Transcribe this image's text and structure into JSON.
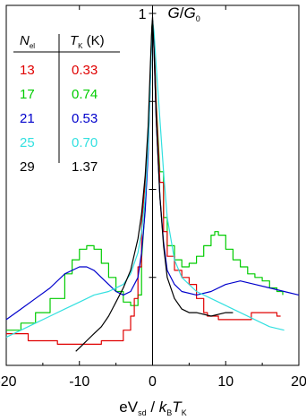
{
  "chart_data": {
    "type": "line",
    "x_axis": {
      "label_parts": [
        "eV",
        "sd",
        " / ",
        "k",
        "B",
        "T",
        "K"
      ],
      "range": [
        -20,
        20
      ],
      "ticks": [
        -20,
        -10,
        0,
        10,
        20
      ],
      "tick_labels": [
        "-20",
        "-10",
        "0",
        "10",
        "20"
      ]
    },
    "y_axis": {
      "label_parts": [
        "G",
        "/",
        "G",
        "0"
      ],
      "range": [
        0,
        1
      ],
      "tick_labels": [
        "1"
      ]
    },
    "table": {
      "header_n_parts": [
        "N",
        "el"
      ],
      "header_t_parts": [
        "T",
        "K",
        " (K)"
      ],
      "rows": [
        {
          "n": "13",
          "t": "0.33",
          "color": "#e00000"
        },
        {
          "n": "17",
          "t": "0.74",
          "color": "#00cc00"
        },
        {
          "n": "21",
          "t": "0.53",
          "color": "#0000cc"
        },
        {
          "n": "25",
          "t": "0.70",
          "color": "#33e0e0"
        },
        {
          "n": "29",
          "t": "1.37",
          "color": "#000000"
        }
      ]
    },
    "series": [
      {
        "color": "#00cc00",
        "step": true,
        "points": [
          [
            -20,
            0.1
          ],
          [
            -18,
            0.12
          ],
          [
            -16,
            0.15
          ],
          [
            -14,
            0.19
          ],
          [
            -12,
            0.26
          ],
          [
            -11,
            0.3
          ],
          [
            -10,
            0.33
          ],
          [
            -9,
            0.34
          ],
          [
            -8,
            0.33
          ],
          [
            -7,
            0.29
          ],
          [
            -6,
            0.25
          ],
          [
            -5,
            0.21
          ],
          [
            -4,
            0.18
          ],
          [
            -3,
            0.17
          ],
          [
            -2,
            0.2
          ],
          [
            -1.5,
            0.3
          ],
          [
            -1,
            0.45
          ],
          [
            -0.6,
            0.62
          ],
          [
            -0.3,
            0.82
          ],
          [
            -0.1,
            0.96
          ],
          [
            0,
            0.98
          ],
          [
            0.2,
            0.93
          ],
          [
            0.5,
            0.75
          ],
          [
            1,
            0.55
          ],
          [
            1.5,
            0.42
          ],
          [
            2,
            0.34
          ],
          [
            3,
            0.3
          ],
          [
            4,
            0.28
          ],
          [
            5,
            0.29
          ],
          [
            6,
            0.31
          ],
          [
            7,
            0.34
          ],
          [
            8,
            0.37
          ],
          [
            8.5,
            0.38
          ],
          [
            9,
            0.37
          ],
          [
            10,
            0.33
          ],
          [
            11,
            0.3
          ],
          [
            12,
            0.28
          ],
          [
            13,
            0.26
          ],
          [
            14,
            0.25
          ],
          [
            15,
            0.24
          ],
          [
            16,
            0.22
          ],
          [
            17,
            0.21
          ],
          [
            17.8,
            0.2
          ]
        ]
      },
      {
        "color": "#e00000",
        "step": true,
        "points": [
          [
            -20,
            0.09
          ],
          [
            -17,
            0.07
          ],
          [
            -13,
            0.06
          ],
          [
            -10,
            0.06
          ],
          [
            -8,
            0.06
          ],
          [
            -7,
            0.07
          ],
          [
            -5,
            0.07
          ],
          [
            -4,
            0.1
          ],
          [
            -3,
            0.14
          ],
          [
            -2.5,
            0.19
          ],
          [
            -2,
            0.28
          ],
          [
            -1.5,
            0.4
          ],
          [
            -1,
            0.52
          ],
          [
            -0.6,
            0.66
          ],
          [
            -0.3,
            0.82
          ],
          [
            -0.1,
            0.95
          ],
          [
            0,
            0.98
          ],
          [
            0.2,
            0.93
          ],
          [
            0.5,
            0.74
          ],
          [
            1,
            0.52
          ],
          [
            1.5,
            0.38
          ],
          [
            2,
            0.31
          ],
          [
            3,
            0.27
          ],
          [
            4,
            0.25
          ],
          [
            5,
            0.23
          ],
          [
            6,
            0.19
          ],
          [
            7,
            0.15
          ],
          [
            7.5,
            0.14
          ],
          [
            8,
            0.14
          ],
          [
            9,
            0.13
          ],
          [
            10,
            0.13
          ],
          [
            13,
            0.13
          ],
          [
            13.5,
            0.15
          ],
          [
            15,
            0.15
          ],
          [
            17,
            0.14
          ],
          [
            17.5,
            0.14
          ]
        ]
      },
      {
        "color": "#0000cc",
        "step": false,
        "points": [
          [
            -20,
            0.13
          ],
          [
            -18,
            0.16
          ],
          [
            -16,
            0.19
          ],
          [
            -14,
            0.22
          ],
          [
            -12,
            0.26
          ],
          [
            -10,
            0.28
          ],
          [
            -9,
            0.28
          ],
          [
            -8,
            0.27
          ],
          [
            -7,
            0.25
          ],
          [
            -6,
            0.23
          ],
          [
            -5,
            0.21
          ],
          [
            -4,
            0.2
          ],
          [
            -3,
            0.21
          ],
          [
            -2,
            0.25
          ],
          [
            -1.5,
            0.32
          ],
          [
            -1,
            0.44
          ],
          [
            -0.6,
            0.6
          ],
          [
            -0.3,
            0.8
          ],
          [
            -0.1,
            0.95
          ],
          [
            0,
            0.98
          ],
          [
            0.2,
            0.9
          ],
          [
            0.5,
            0.7
          ],
          [
            1,
            0.48
          ],
          [
            1.5,
            0.35
          ],
          [
            2,
            0.27
          ],
          [
            3,
            0.23
          ],
          [
            4,
            0.21
          ],
          [
            6,
            0.2
          ],
          [
            8,
            0.21
          ],
          [
            10,
            0.23
          ],
          [
            12,
            0.24
          ],
          [
            14,
            0.23
          ],
          [
            16,
            0.22
          ],
          [
            18,
            0.21
          ],
          [
            20,
            0.2
          ]
        ]
      },
      {
        "color": "#33e0e0",
        "step": false,
        "points": [
          [
            -20,
            0.08
          ],
          [
            -18,
            0.1
          ],
          [
            -16,
            0.12
          ],
          [
            -14,
            0.14
          ],
          [
            -12,
            0.16
          ],
          [
            -10,
            0.18
          ],
          [
            -8,
            0.2
          ],
          [
            -6,
            0.21
          ],
          [
            -4,
            0.23
          ],
          [
            -3,
            0.26
          ],
          [
            -2,
            0.32
          ],
          [
            -1.5,
            0.38
          ],
          [
            -1,
            0.48
          ],
          [
            -0.6,
            0.62
          ],
          [
            -0.3,
            0.8
          ],
          [
            -0.1,
            0.94
          ],
          [
            0,
            0.98
          ],
          [
            0.2,
            0.95
          ],
          [
            0.5,
            0.85
          ],
          [
            1,
            0.7
          ],
          [
            1.5,
            0.55
          ],
          [
            2,
            0.42
          ],
          [
            3,
            0.3
          ],
          [
            4,
            0.25
          ],
          [
            6,
            0.21
          ],
          [
            8,
            0.19
          ],
          [
            10,
            0.17
          ],
          [
            12,
            0.15
          ],
          [
            14,
            0.13
          ],
          [
            16,
            0.11
          ],
          [
            18,
            0.1
          ]
        ]
      },
      {
        "color": "#000000",
        "step": false,
        "points": [
          [
            -10.5,
            0.04
          ],
          [
            -10,
            0.05
          ],
          [
            -9,
            0.07
          ],
          [
            -8,
            0.09
          ],
          [
            -7,
            0.11
          ],
          [
            -6,
            0.14
          ],
          [
            -5,
            0.18
          ],
          [
            -4,
            0.22
          ],
          [
            -3,
            0.27
          ],
          [
            -2,
            0.36
          ],
          [
            -1.5,
            0.43
          ],
          [
            -1,
            0.54
          ],
          [
            -0.6,
            0.68
          ],
          [
            -0.3,
            0.85
          ],
          [
            -0.1,
            0.96
          ],
          [
            0,
            0.99
          ],
          [
            0.2,
            0.9
          ],
          [
            0.5,
            0.7
          ],
          [
            1,
            0.48
          ],
          [
            1.5,
            0.34
          ],
          [
            2,
            0.25
          ],
          [
            3,
            0.19
          ],
          [
            4,
            0.16
          ],
          [
            5,
            0.15
          ],
          [
            6,
            0.15
          ],
          [
            8,
            0.14
          ],
          [
            10,
            0.15
          ],
          [
            11,
            0.15
          ]
        ]
      }
    ]
  }
}
